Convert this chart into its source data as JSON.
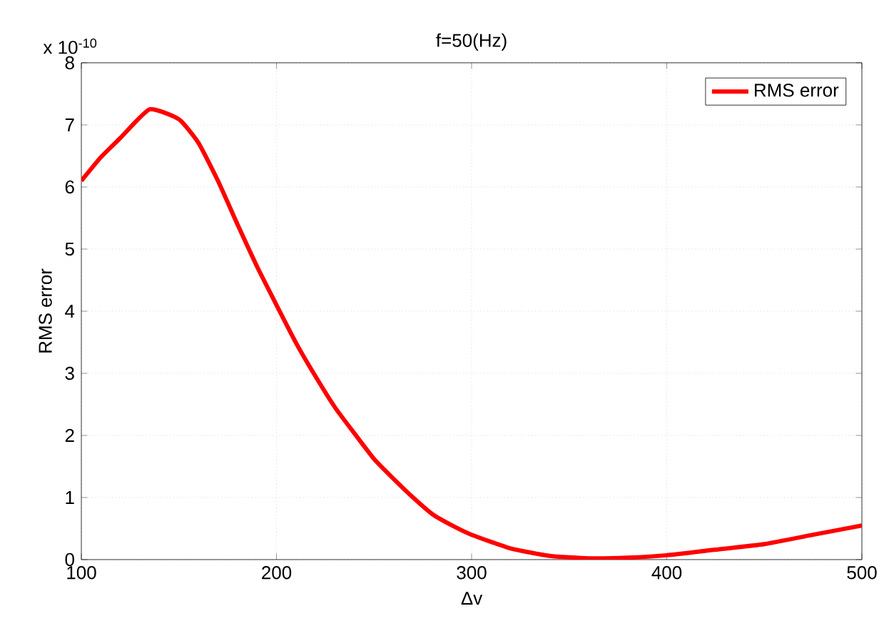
{
  "chart_data": {
    "type": "line",
    "title": "f=50(Hz)",
    "xlabel": "Δv",
    "ylabel": "RMS error",
    "annotations": [
      "x 10$^{-10}$"
    ],
    "x": [
      100,
      110,
      120,
      135,
      150,
      160,
      170,
      180,
      190,
      200,
      210,
      220,
      230,
      240,
      250,
      260,
      270,
      280,
      290,
      300,
      320,
      340,
      360,
      380,
      400,
      425,
      450,
      475,
      500
    ],
    "series": [
      {
        "name": "RMS error",
        "color": "#ff0000",
        "values": [
          6.1,
          6.48,
          6.79,
          7.25,
          7.09,
          6.71,
          6.1,
          5.4,
          4.72,
          4.1,
          3.49,
          2.95,
          2.45,
          2.03,
          1.62,
          1.3,
          1.0,
          0.73,
          0.55,
          0.4,
          0.18,
          0.06,
          0.02,
          0.03,
          0.07,
          0.16,
          0.25,
          0.4,
          0.55
        ]
      }
    ],
    "xlim": [
      100,
      500
    ],
    "ylim": [
      0,
      8
    ],
    "xticks": [
      100,
      200,
      300,
      400,
      500
    ],
    "yticks": [
      0,
      1,
      2,
      3,
      4,
      5,
      6,
      7,
      8
    ],
    "grid": true,
    "legend": "top right",
    "line_style": "solid",
    "marker": "none"
  }
}
